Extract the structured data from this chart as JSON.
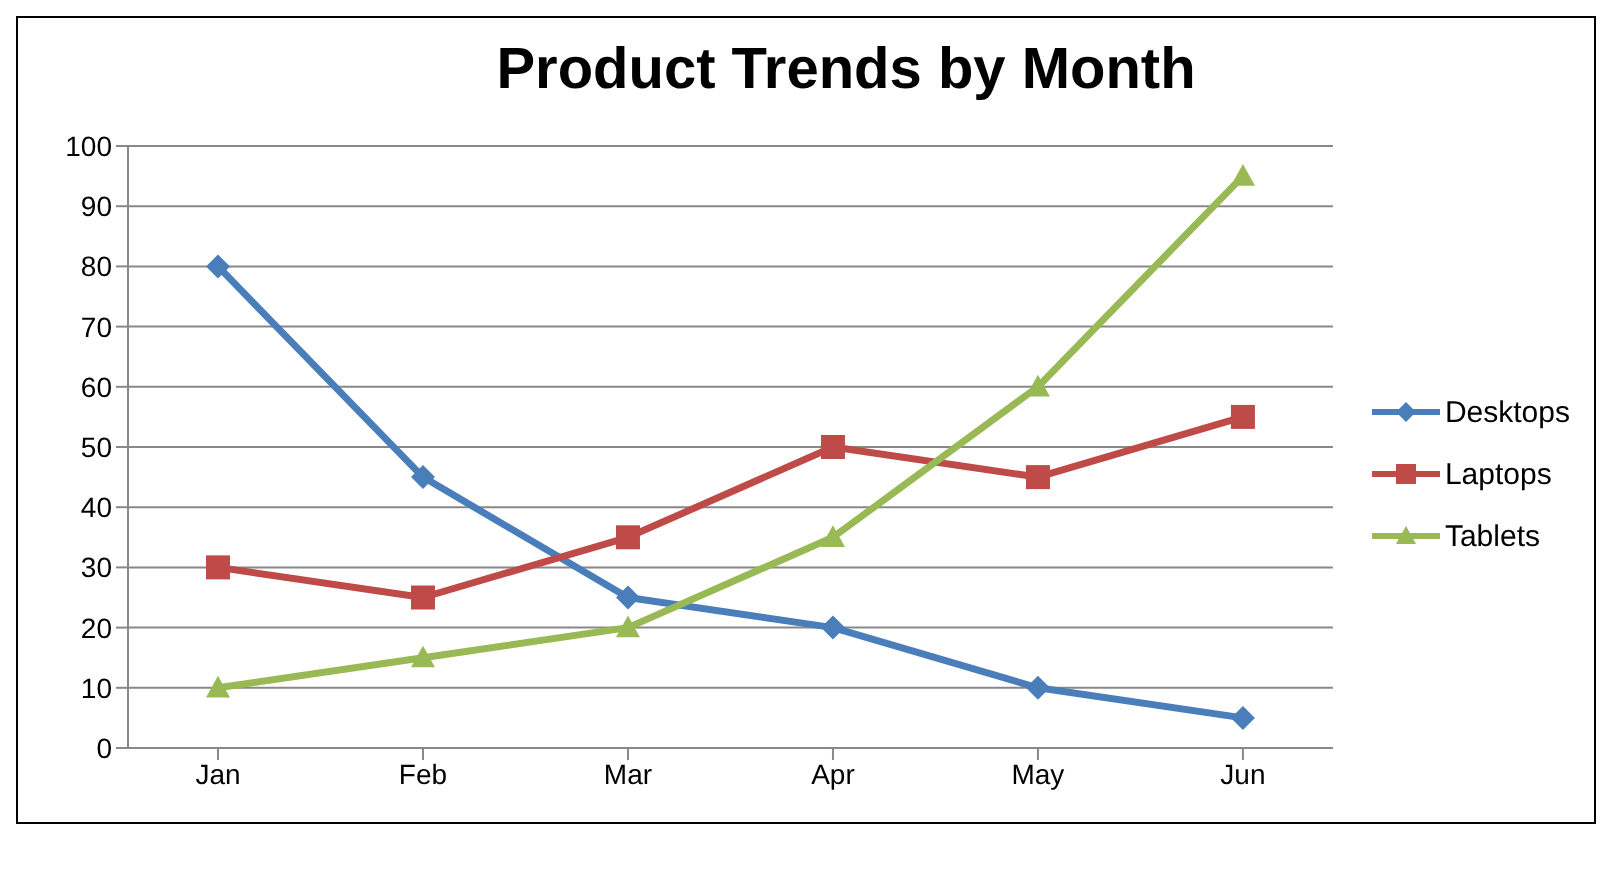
{
  "chart_data": {
    "type": "line",
    "title": "Product Trends by Month",
    "categories": [
      "Jan",
      "Feb",
      "Mar",
      "Apr",
      "May",
      "Jun"
    ],
    "series": [
      {
        "name": "Desktops",
        "color": "#4a7ebb",
        "marker": "diamond",
        "values": [
          80,
          45,
          25,
          20,
          10,
          5
        ]
      },
      {
        "name": "Laptops",
        "color": "#be4b48",
        "marker": "square",
        "values": [
          30,
          25,
          35,
          50,
          45,
          55
        ]
      },
      {
        "name": "Tablets",
        "color": "#98b954",
        "marker": "triangle",
        "values": [
          10,
          15,
          20,
          35,
          60,
          95
        ]
      }
    ],
    "ylim": [
      0,
      100
    ],
    "yticks": [
      0,
      10,
      20,
      30,
      40,
      50,
      60,
      70,
      80,
      90,
      100
    ],
    "grid": "y",
    "legend": "right"
  }
}
